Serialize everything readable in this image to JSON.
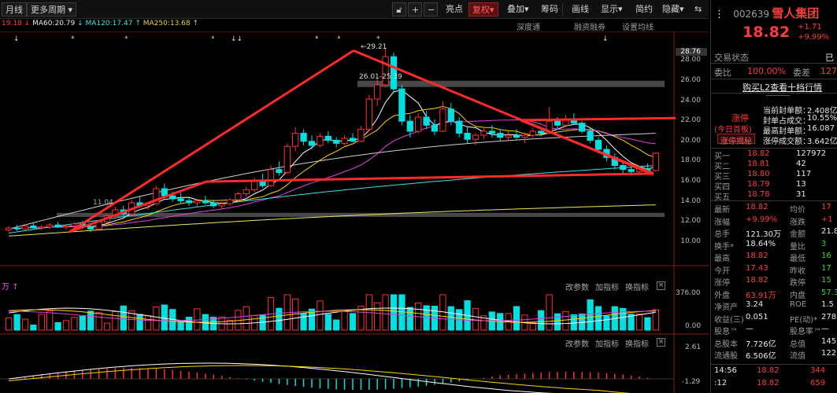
{
  "toolbar": {
    "period": "月线",
    "more_periods": "更多周期",
    "plus": "+",
    "minus": "−",
    "highlight": "亮点",
    "adjust": "复权",
    "overlay": "叠加",
    "chips": "筹码",
    "draw": "画线",
    "display": "显示",
    "simple": "简约",
    "hide": "隐藏"
  },
  "ma_legend": {
    "ma_short": "19.18",
    "ma60": "MA60:20.79",
    "ma120": "MA120:17.47",
    "ma250": "MA250:13.68"
  },
  "subbar": {
    "deep_tape": "深度通",
    "margin": "融资融券",
    "ma_settings": "设置均线"
  },
  "price_axis": [
    "28.76",
    "28.00",
    "26.00",
    "24.00",
    "22.00",
    "20.00",
    "18.00",
    "16.00",
    "14.00",
    "12.00",
    "10.00"
  ],
  "annotations": {
    "high_label": "29.21",
    "range_label": "26.01-25.39",
    "low_label": "11.04"
  },
  "volume_pane": {
    "unit": "万",
    "params": "改参数",
    "add_indicator": "加指标",
    "swap_indicator": "换指标",
    "axis_top": "376.00",
    "axis_zero": "0.00"
  },
  "macd_pane": {
    "params": "改参数",
    "add_indicator": "加指标",
    "swap_indicator": "换指标",
    "axis_top": "2.61",
    "axis_bottom": "-1.29"
  },
  "chart_data": {
    "type": "candlestick",
    "colors": {
      "up": "#ff3030",
      "down": "#00e0e0",
      "ma5": "#ffffff",
      "ma10": "#ffd000",
      "ma20": "#e040e0",
      "ma60": "#d0d0d0",
      "ma120": "#40e0e0",
      "ma250": "#e8e860"
    },
    "ylim": [
      10.0,
      29.5
    ],
    "candles": [
      [
        11.2,
        11.6,
        11.0,
        11.4
      ],
      [
        11.4,
        11.7,
        11.1,
        11.3
      ],
      [
        11.3,
        11.8,
        11.2,
        11.6
      ],
      [
        11.6,
        11.9,
        11.3,
        11.4
      ],
      [
        11.4,
        11.7,
        11.2,
        11.5
      ],
      [
        11.5,
        11.9,
        11.3,
        11.7
      ],
      [
        11.7,
        12.0,
        11.4,
        11.5
      ],
      [
        11.5,
        11.8,
        11.2,
        11.6
      ],
      [
        11.6,
        12.0,
        11.5,
        11.8
      ],
      [
        11.8,
        12.1,
        11.3,
        11.5
      ],
      [
        11.5,
        11.8,
        11.0,
        11.3
      ],
      [
        11.3,
        12.2,
        11.2,
        12.0
      ],
      [
        12.0,
        12.8,
        11.9,
        12.6
      ],
      [
        12.6,
        13.5,
        12.4,
        13.2
      ],
      [
        13.2,
        13.6,
        12.6,
        12.8
      ],
      [
        12.8,
        14.2,
        12.7,
        13.9
      ],
      [
        13.9,
        14.6,
        13.4,
        13.6
      ],
      [
        13.6,
        14.0,
        13.2,
        13.8
      ],
      [
        13.8,
        15.6,
        13.7,
        15.3
      ],
      [
        15.3,
        15.8,
        14.4,
        14.6
      ],
      [
        14.6,
        15.0,
        14.0,
        14.3
      ],
      [
        14.3,
        14.9,
        13.8,
        14.1
      ],
      [
        14.1,
        14.5,
        13.6,
        13.9
      ],
      [
        13.9,
        14.3,
        13.5,
        14.1
      ],
      [
        14.1,
        14.6,
        13.7,
        13.9
      ],
      [
        13.9,
        14.2,
        13.4,
        13.6
      ],
      [
        13.6,
        14.0,
        13.3,
        13.8
      ],
      [
        13.8,
        14.4,
        13.6,
        14.2
      ],
      [
        14.2,
        15.0,
        14.0,
        14.8
      ],
      [
        14.8,
        15.5,
        14.5,
        15.2
      ],
      [
        15.2,
        16.4,
        15.0,
        16.0
      ],
      [
        16.0,
        16.8,
        15.4,
        15.6
      ],
      [
        15.6,
        17.6,
        15.5,
        17.2
      ],
      [
        17.2,
        18.0,
        16.6,
        16.9
      ],
      [
        16.9,
        19.8,
        16.8,
        19.5
      ],
      [
        19.5,
        21.4,
        19.0,
        20.8
      ],
      [
        20.8,
        21.2,
        19.6,
        20.0
      ],
      [
        20.0,
        20.6,
        19.2,
        19.6
      ],
      [
        19.6,
        20.8,
        19.4,
        20.5
      ],
      [
        20.5,
        21.0,
        19.8,
        20.1
      ],
      [
        20.1,
        20.4,
        19.4,
        19.8
      ],
      [
        19.8,
        20.6,
        19.6,
        20.3
      ],
      [
        20.3,
        20.8,
        19.9,
        20.0
      ],
      [
        20.0,
        21.5,
        19.9,
        21.2
      ],
      [
        21.2,
        24.6,
        21.0,
        24.2
      ],
      [
        24.2,
        26.2,
        23.5,
        25.6
      ],
      [
        25.6,
        29.2,
        25.4,
        28.4
      ],
      [
        28.4,
        28.8,
        24.8,
        25.2
      ],
      [
        25.2,
        25.6,
        21.6,
        22.0
      ],
      [
        22.0,
        22.6,
        20.4,
        21.0
      ],
      [
        21.0,
        22.8,
        20.8,
        22.4
      ],
      [
        22.4,
        23.0,
        21.2,
        21.6
      ],
      [
        21.6,
        22.2,
        20.6,
        21.0
      ],
      [
        21.0,
        24.0,
        20.9,
        23.2
      ],
      [
        23.2,
        23.8,
        21.6,
        22.0
      ],
      [
        22.0,
        22.4,
        20.4,
        20.8
      ],
      [
        20.8,
        21.4,
        19.8,
        20.2
      ],
      [
        20.2,
        20.8,
        19.6,
        20.6
      ],
      [
        20.6,
        21.4,
        20.2,
        21.0
      ],
      [
        21.0,
        21.6,
        20.4,
        20.8
      ],
      [
        20.8,
        21.2,
        20.0,
        20.4
      ],
      [
        20.4,
        21.0,
        20.0,
        20.6
      ],
      [
        20.6,
        21.2,
        20.2,
        20.4
      ],
      [
        20.4,
        20.9,
        19.8,
        20.6
      ],
      [
        20.6,
        21.3,
        20.4,
        21.0
      ],
      [
        21.0,
        21.4,
        20.5,
        20.8
      ],
      [
        20.8,
        23.4,
        20.7,
        22.0
      ],
      [
        22.0,
        22.4,
        21.2,
        21.6
      ],
      [
        21.6,
        22.6,
        21.4,
        22.2
      ],
      [
        22.2,
        22.8,
        21.6,
        21.8
      ],
      [
        21.8,
        22.0,
        20.8,
        21.0
      ],
      [
        21.0,
        21.4,
        19.8,
        20.1
      ],
      [
        20.1,
        20.4,
        18.8,
        19.2
      ],
      [
        19.2,
        19.6,
        18.0,
        18.4
      ],
      [
        18.4,
        18.8,
        17.2,
        17.6
      ],
      [
        17.6,
        17.9,
        16.8,
        17.2
      ],
      [
        17.2,
        17.6,
        16.6,
        17.0
      ],
      [
        17.0,
        17.6,
        16.8,
        17.3
      ],
      [
        17.3,
        17.8,
        16.9,
        17.1
      ],
      [
        17.1,
        18.9,
        17.0,
        18.82
      ]
    ],
    "volume_max": 376.0,
    "macd_range": [
      -1.29,
      2.61
    ]
  },
  "side": {
    "code": "002639",
    "name": "雪人集团",
    "price": "18.82",
    "change": "+1.71",
    "change_pct": "+9.99%",
    "trade_status": "交易状态",
    "trade_status_val": "已",
    "ratio_label": "委比",
    "ratio_val": "100.00%",
    "diff_label": "委差",
    "diff_val": "127",
    "l2_link": "购买L2查看十档行情",
    "limit_up_title": "涨停",
    "limit_up_sub": "(今日首板)",
    "limit_up_btn": "涨停揭秘",
    "seal_rows": [
      [
        "当前封单额：",
        "2.408亿"
      ],
      [
        "封单占成交：",
        "10.55%"
      ],
      [
        "最高封单额：",
        "16.087"
      ],
      [
        "涨停成交额：",
        "3.642亿"
      ]
    ],
    "order_book": [
      [
        "买一",
        "18.82",
        "127972"
      ],
      [
        "买二",
        "18.81",
        "42"
      ],
      [
        "买三",
        "18.80",
        "117"
      ],
      [
        "买四",
        "18.79",
        "13"
      ],
      [
        "买五",
        "18.78",
        "31"
      ]
    ],
    "stats": [
      [
        "最新",
        "18.82",
        "均价",
        "17"
      ],
      [
        "涨幅",
        "+9.99%",
        "涨跌",
        "+1"
      ],
      [
        "总手",
        "121.30万",
        "金额",
        "21.8"
      ],
      [
        "换手*",
        "18.64%",
        "量比",
        "3"
      ],
      [
        "最高",
        "18.82",
        "最低",
        "16"
      ],
      [
        "今开",
        "17.43",
        "昨收",
        "17"
      ],
      [
        "涨停",
        "18.82",
        "跌停",
        "15"
      ],
      [
        "外盘",
        "63.91万",
        "内盘",
        "57.3"
      ],
      [
        "净资产",
        "3.24",
        "ROE",
        "1.5"
      ],
      [
        "收益(三)",
        "0.051",
        "PE(动)*",
        "278"
      ],
      [
        "股息™",
        "—",
        "股息率™",
        "—"
      ],
      [
        "总股本",
        "7.726亿",
        "总值",
        "145."
      ],
      [
        "流通股",
        "6.506亿",
        "流值",
        "122."
      ]
    ],
    "ticks": [
      [
        "14:56",
        "18.82",
        "344"
      ],
      [
        ":12",
        "18.82",
        "659"
      ]
    ]
  }
}
